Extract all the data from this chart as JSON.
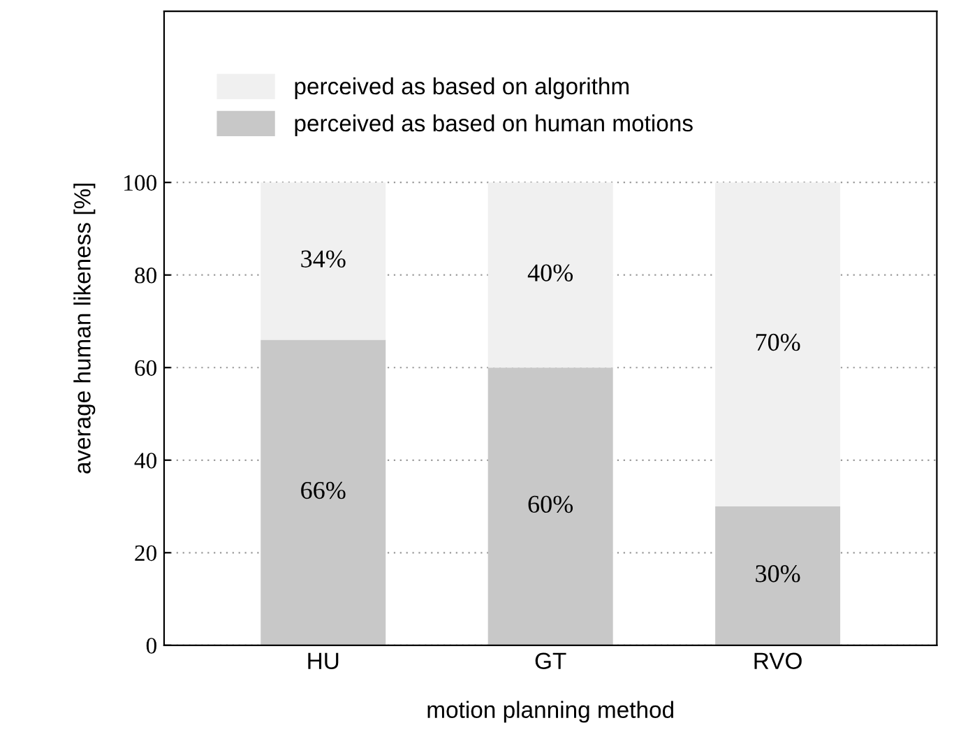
{
  "chart_data": {
    "type": "bar",
    "stacked": true,
    "xlabel": "motion planning method",
    "ylabel": "average human likeness [%]",
    "categories": [
      "HU",
      "GT",
      "RVO"
    ],
    "series": [
      {
        "name": "perceived as based on human motions",
        "color": "#c8c8c8",
        "values": [
          66,
          60,
          30
        ],
        "value_labels": [
          "66%",
          "60%",
          "30%"
        ]
      },
      {
        "name": "perceived as based on algorithm",
        "color": "#f0f0f0",
        "values": [
          34,
          40,
          70
        ],
        "value_labels": [
          "34%",
          "40%",
          "70%"
        ]
      }
    ],
    "ylim": [
      0,
      137
    ],
    "yticks": [
      0,
      20,
      40,
      60,
      80,
      100
    ],
    "grid": "y",
    "legend": "top left"
  }
}
